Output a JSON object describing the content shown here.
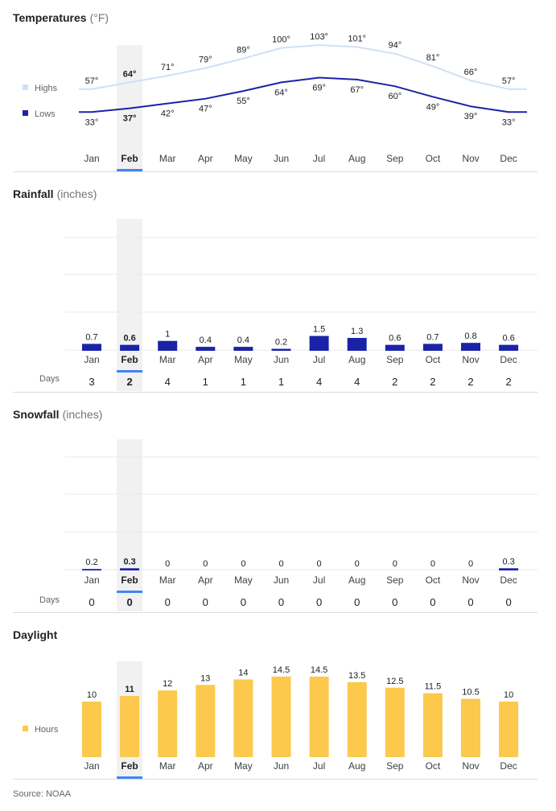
{
  "selected_month_index": 1,
  "colors": {
    "highs": "#cfe0f7",
    "lows": "#1a23a8",
    "bars": "#1a23a8",
    "daylight": "#fcc94d",
    "highlight": "#f1f1f1",
    "selected_underline": "#4285f4",
    "grid": "#e8eaed"
  },
  "months": [
    "Jan",
    "Feb",
    "Mar",
    "Apr",
    "May",
    "Jun",
    "Jul",
    "Aug",
    "Sep",
    "Oct",
    "Nov",
    "Dec"
  ],
  "temperatures": {
    "title": "Temperatures",
    "unit": "(°F)",
    "legend_highs": "Highs",
    "legend_lows": "Lows"
  },
  "rainfall": {
    "title": "Rainfall",
    "unit": "(inches)",
    "days_label": "Days"
  },
  "snowfall": {
    "title": "Snowfall",
    "unit": "(inches)",
    "days_label": "Days"
  },
  "daylight": {
    "title": "Daylight",
    "legend": "Hours"
  },
  "source": "Source: NOAA",
  "chart_data": [
    {
      "type": "line",
      "title": "Temperatures",
      "unit": "°F",
      "x": [
        "Jan",
        "Feb",
        "Mar",
        "Apr",
        "May",
        "Jun",
        "Jul",
        "Aug",
        "Sep",
        "Oct",
        "Nov",
        "Dec"
      ],
      "series": [
        {
          "name": "Highs",
          "values": [
            57,
            64,
            71,
            79,
            89,
            100,
            103,
            101,
            94,
            81,
            66,
            57
          ]
        },
        {
          "name": "Lows",
          "values": [
            33,
            37,
            42,
            47,
            55,
            64,
            69,
            67,
            60,
            49,
            39,
            33
          ]
        }
      ]
    },
    {
      "type": "bar",
      "title": "Rainfall",
      "unit": "inches",
      "categories": [
        "Jan",
        "Feb",
        "Mar",
        "Apr",
        "May",
        "Jun",
        "Jul",
        "Aug",
        "Sep",
        "Oct",
        "Nov",
        "Dec"
      ],
      "values": [
        0.7,
        0.6,
        1,
        0.4,
        0.4,
        0.2,
        1.5,
        1.3,
        0.6,
        0.7,
        0.8,
        0.6
      ],
      "value_labels": [
        "0.7",
        "0.6",
        "1",
        "0.4",
        "0.4",
        "0.2",
        "1.5",
        "1.3",
        "0.6",
        "0.7",
        "0.8",
        "0.6"
      ],
      "days": [
        3,
        2,
        4,
        1,
        1,
        1,
        4,
        4,
        2,
        2,
        2,
        2
      ]
    },
    {
      "type": "bar",
      "title": "Snowfall",
      "unit": "inches",
      "categories": [
        "Jan",
        "Feb",
        "Mar",
        "Apr",
        "May",
        "Jun",
        "Jul",
        "Aug",
        "Sep",
        "Oct",
        "Nov",
        "Dec"
      ],
      "values": [
        0.2,
        0.3,
        0,
        0,
        0,
        0,
        0,
        0,
        0,
        0,
        0,
        0.3
      ],
      "value_labels": [
        "0.2",
        "0.3",
        "0",
        "0",
        "0",
        "0",
        "0",
        "0",
        "0",
        "0",
        "0",
        "0.3"
      ],
      "days": [
        0,
        0,
        0,
        0,
        0,
        0,
        0,
        0,
        0,
        0,
        0,
        0
      ]
    },
    {
      "type": "bar",
      "title": "Daylight",
      "series_name": "Hours",
      "categories": [
        "Jan",
        "Feb",
        "Mar",
        "Apr",
        "May",
        "Jun",
        "Jul",
        "Aug",
        "Sep",
        "Oct",
        "Nov",
        "Dec"
      ],
      "values": [
        10,
        11,
        12,
        13,
        14,
        14.5,
        14.5,
        13.5,
        12.5,
        11.5,
        10.5,
        10
      ],
      "value_labels": [
        "10",
        "11",
        "12",
        "13",
        "14",
        "14.5",
        "14.5",
        "13.5",
        "12.5",
        "11.5",
        "10.5",
        "10"
      ]
    }
  ]
}
